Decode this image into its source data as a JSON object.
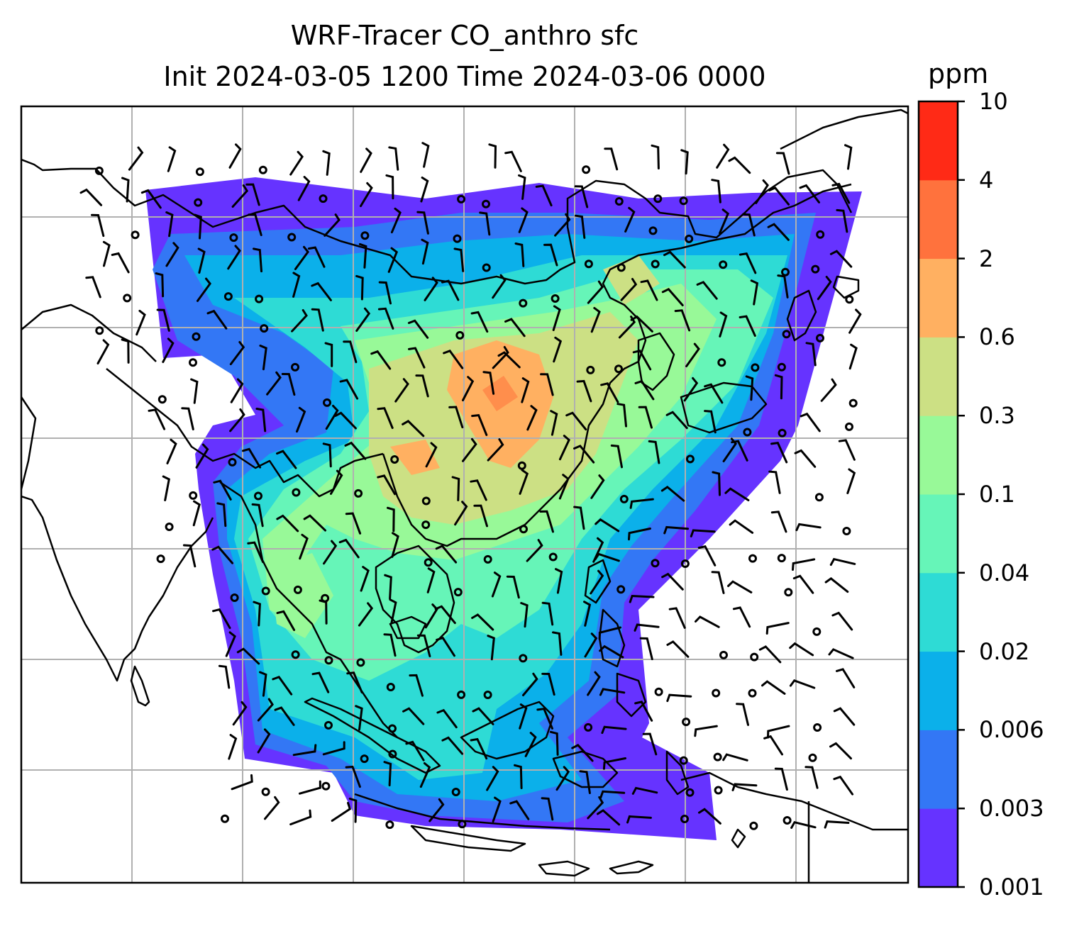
{
  "figure": {
    "title_line1": "WRF-Tracer CO_anthro sfc",
    "title_line2": "Init 2024-03-05 1200 Time 2024-03-06 0000"
  },
  "colorbar": {
    "label": "ppm",
    "ticks": [
      "0.001",
      "0.003",
      "0.006",
      "0.02",
      "0.04",
      "0.1",
      "0.3",
      "0.6",
      "2",
      "4",
      "10"
    ],
    "colors": [
      "#6633ff",
      "#3377f5",
      "#0bb0ea",
      "#2edbd5",
      "#66f5b8",
      "#98f998",
      "#cce084",
      "#ffb061",
      "#ff723d",
      "#ff2a16"
    ]
  },
  "map": {
    "field": "CO_anthro",
    "level": "sfc",
    "units": "ppm",
    "features": [
      "coastlines",
      "gridlines",
      "wind-barbs",
      "filled-contours"
    ],
    "gridline_color": "#b0b0b0"
  }
}
